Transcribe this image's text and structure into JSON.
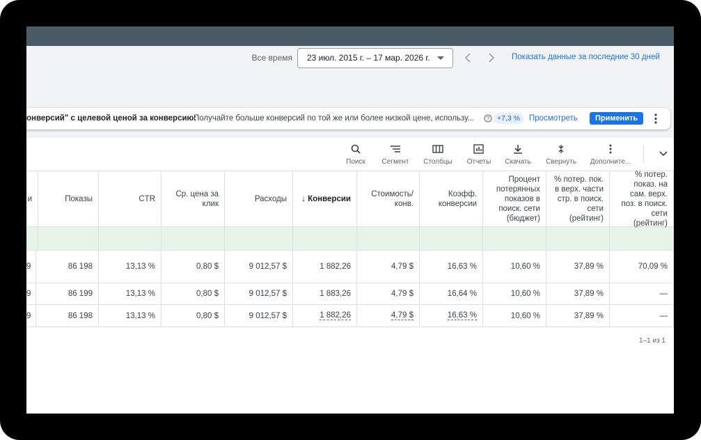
{
  "date_bar": {
    "label": "Все время",
    "range": "23 июл. 2015 г. – 17 мар. 2026 г.",
    "link": "Показать данные за последние 30 дней"
  },
  "recommendation": {
    "title": "онверсий\" с целевой ценой за конверсию:",
    "text": "Получайте больше конверсий по той же или более низкой цене, использу...",
    "uplift": "+7,3 %",
    "view": "Просмотреть",
    "apply": "Применить"
  },
  "toolbar": [
    "Поиск",
    "Сегмент",
    "Столбцы",
    "Отчеты",
    "Скачать",
    "Свернуть",
    "Дополните..."
  ],
  "table": {
    "headers": [
      "и",
      "Показы",
      "CTR",
      "Ср. цена за клик",
      "Расходы",
      "↓ Конверсии",
      "Стоимость/ конв.",
      "Коэфф. конверсии",
      "Процент потерянных показов в поиск. сети (бюджет)",
      "% потер. пок. в верх. части стр. в поиск. сети (рейтинг)",
      "% потер. показ. на сам. верх. поз. в поиск. сети (рейтинг)"
    ],
    "rows": [
      [
        "9",
        "86 198",
        "13,13 %",
        "0,80 $",
        "9 012,57 $",
        "1 882,26",
        "4,79 $",
        "16,63 %",
        "10,60 %",
        "37,89 %",
        "70,09 %"
      ],
      [
        "9",
        "86 199",
        "13,13 %",
        "0,80 $",
        "9 012,57 $",
        "1 883,26",
        "4,79 $",
        "16,64 %",
        "10,60 %",
        "37,89 %",
        "—"
      ],
      [
        "9",
        "86 198",
        "13,13 %",
        "0,80 $",
        "9 012,57 $",
        "1 882,26",
        "4,79 $",
        "16,63 %",
        "10,60 %",
        "37,89 %",
        "—"
      ]
    ]
  },
  "pagination": "1–1 из 1"
}
